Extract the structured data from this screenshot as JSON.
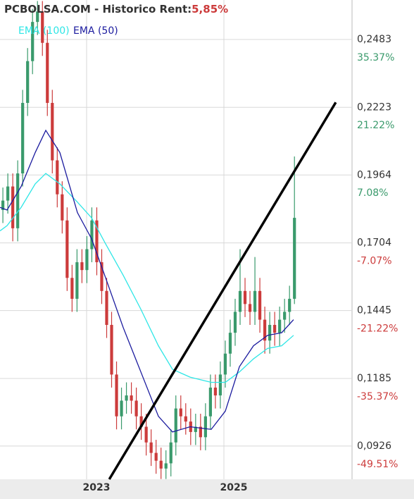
{
  "chart_data": {
    "type": "candlestick",
    "title": "PCBOLSA.COM - Historico  Rent:",
    "rent": "5,85%",
    "x": [
      2021.78,
      2021.852,
      2021.924,
      2021.996,
      2022.068,
      2022.14,
      2022.212,
      2022.284,
      2022.356,
      2022.428,
      2022.5,
      2022.572,
      2022.644,
      2022.716,
      2022.788,
      2022.86,
      2022.932,
      2023.004,
      2023.076,
      2023.148,
      2023.22,
      2023.292,
      2023.364,
      2023.436,
      2023.508,
      2023.58,
      2023.652,
      2023.724,
      2023.796,
      2023.868,
      2023.94,
      2024.012,
      2024.084,
      2024.156,
      2024.228,
      2024.3,
      2024.372,
      2024.444,
      2024.516,
      2024.588,
      2024.66,
      2024.732,
      2024.804,
      2024.876,
      2024.948,
      2025.02,
      2025.092,
      2025.164,
      2025.236,
      2025.308,
      2025.38,
      2025.452,
      2025.524,
      2025.596,
      2025.668,
      2025.74,
      2025.812,
      2025.884,
      2025.956,
      2026.028
    ],
    "open": [
      0.183,
      0.1866,
      0.192,
      0.176,
      0.197,
      0.224,
      0.24,
      0.255,
      0.259,
      0.247,
      0.224,
      0.202,
      0.189,
      0.179,
      0.157,
      0.149,
      0.163,
      0.16,
      0.168,
      0.179,
      0.163,
      0.152,
      0.139,
      0.12,
      0.104,
      0.11,
      0.112,
      0.11,
      0.104,
      0.1,
      0.094,
      0.09,
      0.087,
      0.084,
      0.086,
      0.094,
      0.107,
      0.104,
      0.102,
      0.098,
      0.1,
      0.096,
      0.104,
      0.115,
      0.112,
      0.12,
      0.128,
      0.136,
      0.144,
      0.152,
      0.147,
      0.144,
      0.152,
      0.141,
      0.133,
      0.139,
      0.136,
      0.141,
      0.144,
      0.149
    ],
    "high": [
      0.1916,
      0.197,
      0.197,
      0.202,
      0.229,
      0.245,
      0.26,
      0.263,
      0.263,
      0.252,
      0.229,
      0.207,
      0.194,
      0.184,
      0.162,
      0.168,
      0.168,
      0.173,
      0.184,
      0.184,
      0.168,
      0.157,
      0.144,
      0.125,
      0.115,
      0.117,
      0.117,
      0.115,
      0.109,
      0.105,
      0.099,
      0.095,
      0.092,
      0.091,
      0.099,
      0.112,
      0.112,
      0.109,
      0.107,
      0.105,
      0.105,
      0.109,
      0.12,
      0.12,
      0.125,
      0.133,
      0.141,
      0.149,
      0.168,
      0.157,
      0.152,
      0.165,
      0.157,
      0.146,
      0.144,
      0.144,
      0.146,
      0.149,
      0.154,
      0.2035
    ],
    "low": [
      0.178,
      0.1816,
      0.171,
      0.171,
      0.192,
      0.219,
      0.235,
      0.25,
      0.242,
      0.219,
      0.197,
      0.184,
      0.174,
      0.152,
      0.144,
      0.144,
      0.155,
      0.155,
      0.163,
      0.158,
      0.147,
      0.134,
      0.115,
      0.099,
      0.099,
      0.105,
      0.105,
      0.099,
      0.095,
      0.089,
      0.085,
      0.082,
      0.08,
      0.08,
      0.081,
      0.089,
      0.099,
      0.097,
      0.093,
      0.093,
      0.091,
      0.091,
      0.099,
      0.107,
      0.107,
      0.115,
      0.123,
      0.131,
      0.139,
      0.142,
      0.139,
      0.139,
      0.136,
      0.128,
      0.128,
      0.131,
      0.131,
      0.136,
      0.139,
      0.147
    ],
    "close": [
      0.1866,
      0.192,
      0.176,
      0.197,
      0.224,
      0.24,
      0.255,
      0.259,
      0.247,
      0.224,
      0.202,
      0.189,
      0.179,
      0.157,
      0.149,
      0.163,
      0.16,
      0.168,
      0.179,
      0.163,
      0.152,
      0.139,
      0.12,
      0.104,
      0.11,
      0.112,
      0.11,
      0.104,
      0.1,
      0.094,
      0.09,
      0.087,
      0.084,
      0.086,
      0.094,
      0.107,
      0.104,
      0.102,
      0.098,
      0.1,
      0.096,
      0.104,
      0.115,
      0.112,
      0.12,
      0.128,
      0.136,
      0.144,
      0.152,
      0.147,
      0.144,
      0.152,
      0.141,
      0.133,
      0.139,
      0.136,
      0.141,
      0.144,
      0.149,
      0.18
    ],
    "up_color": "#3a9a6c",
    "down_color": "#cc3b3b",
    "series": [
      {
        "name": "EMA (100)",
        "color": "#2ee6e6",
        "x": [
          2021.738,
          2021.841,
          2022.046,
          2022.251,
          2022.405,
          2022.61,
          2022.866,
          2023.072,
          2023.277,
          2023.533,
          2023.79,
          2024.046,
          2024.251,
          2024.508,
          2024.815,
          2025.021,
          2025.226,
          2025.431,
          2025.636,
          2025.841,
          2026.015
        ],
        "values": [
          0.175,
          0.177,
          0.184,
          0.193,
          0.197,
          0.193,
          0.186,
          0.18,
          0.17,
          0.158,
          0.145,
          0.131,
          0.122,
          0.119,
          0.117,
          0.117,
          0.121,
          0.126,
          0.13,
          0.131,
          0.135
        ]
      },
      {
        "name": "EMA (50)",
        "color": "#1a1a9e",
        "x": [
          2021.738,
          2021.841,
          2022.046,
          2022.251,
          2022.405,
          2022.61,
          2022.866,
          2023.072,
          2023.277,
          2023.533,
          2023.79,
          2024.046,
          2024.251,
          2024.508,
          2024.815,
          2025.021,
          2025.226,
          2025.431,
          2025.636,
          2025.841,
          2026.015
        ],
        "values": [
          0.184,
          0.183,
          0.192,
          0.205,
          0.2135,
          0.205,
          0.182,
          0.172,
          0.157,
          0.138,
          0.121,
          0.104,
          0.098,
          0.1,
          0.099,
          0.106,
          0.123,
          0.131,
          0.135,
          0.136,
          0.141
        ]
      }
    ],
    "trendline": {
      "x": [
        2023.33,
        2026.63
      ],
      "y": [
        0.0799,
        0.2242
      ]
    },
    "xlim": [
      2021.738,
      2026.867
    ],
    "xticks": [
      2023,
      2025
    ],
    "ylim": [
      0.0799,
      0.2634
    ],
    "yticks": [
      {
        "value": 0.2483,
        "label": "0,2483"
      },
      {
        "value": 0.2223,
        "label": "0,2223"
      },
      {
        "value": 0.1964,
        "label": "0,1964"
      },
      {
        "value": 0.1704,
        "label": "0,1704"
      },
      {
        "value": 0.1445,
        "label": "0,1445"
      },
      {
        "value": 0.1185,
        "label": "0,1185"
      },
      {
        "value": 0.0926,
        "label": "0,0926"
      }
    ],
    "y2lim": [
      -56.44,
      43.6
    ],
    "y2ticks": [
      {
        "value": 35.37,
        "label": "35.37%"
      },
      {
        "value": 21.22,
        "label": "21.22%"
      },
      {
        "value": 7.08,
        "label": "7.08%"
      },
      {
        "value": -7.07,
        "label": "-7.07%"
      },
      {
        "value": -21.22,
        "label": "-21.22%"
      },
      {
        "value": -35.37,
        "label": "-35.37%"
      },
      {
        "value": -49.51,
        "label": "-49.51%"
      }
    ],
    "grid": true
  }
}
